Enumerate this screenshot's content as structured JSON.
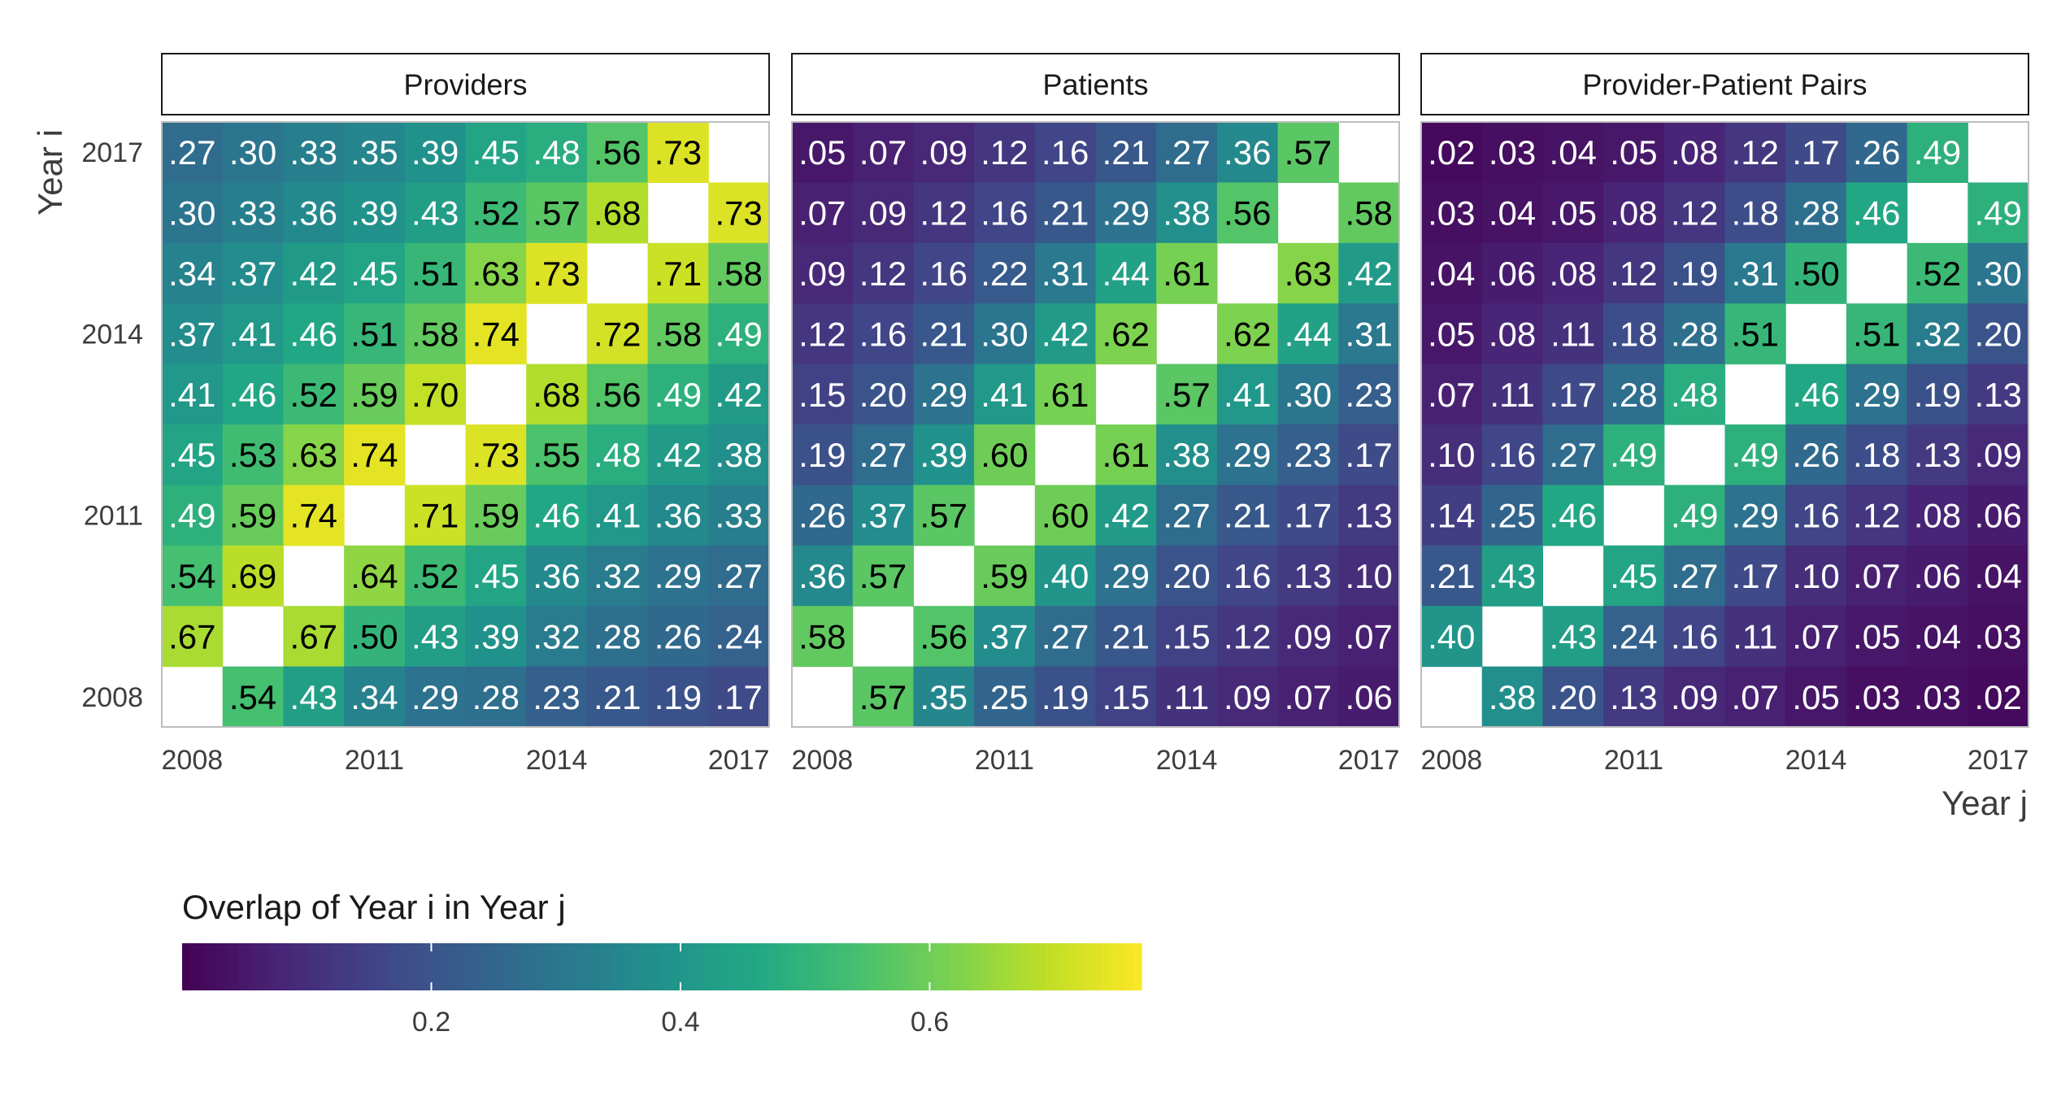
{
  "chart_data": {
    "type": "heatmap",
    "xlabel": "Year j",
    "ylabel": "Year i",
    "years": [
      "2008",
      "2009",
      "2010",
      "2011",
      "2012",
      "2013",
      "2014",
      "2015",
      "2016",
      "2017"
    ],
    "x_tick_labels": [
      "2008",
      "2011",
      "2014",
      "2017"
    ],
    "y_tick_labels": [
      "2008",
      "2011",
      "2014",
      "2017"
    ],
    "color_scale": {
      "name": "viridis",
      "domain": [
        0.0,
        0.77
      ],
      "legend_title": "Overlap of Year i in Year j",
      "legend_ticks": [
        "0.2",
        "0.4",
        "0.6"
      ],
      "legend_tick_values": [
        0.2,
        0.4,
        0.6
      ]
    },
    "panels": [
      {
        "title": "Providers",
        "rows_top_to_bottom": [
          [
            ".27",
            ".30",
            ".33",
            ".35",
            ".39",
            ".45",
            ".48",
            ".56",
            ".73",
            ""
          ],
          [
            ".30",
            ".33",
            ".36",
            ".39",
            ".43",
            ".52",
            ".57",
            ".68",
            "",
            ".73"
          ],
          [
            ".34",
            ".37",
            ".42",
            ".45",
            ".51",
            ".63",
            ".73",
            "",
            ".71",
            ".58"
          ],
          [
            ".37",
            ".41",
            ".46",
            ".51",
            ".58",
            ".74",
            "",
            ".72",
            ".58",
            ".49"
          ],
          [
            ".41",
            ".46",
            ".52",
            ".59",
            ".70",
            "",
            ".68",
            ".56",
            ".49",
            ".42"
          ],
          [
            ".45",
            ".53",
            ".63",
            ".74",
            "",
            ".73",
            ".55",
            ".48",
            ".42",
            ".38"
          ],
          [
            ".49",
            ".59",
            ".74",
            "",
            ".71",
            ".59",
            ".46",
            ".41",
            ".36",
            ".33"
          ],
          [
            ".54",
            ".69",
            "",
            ".64",
            ".52",
            ".45",
            ".36",
            ".32",
            ".29",
            ".27"
          ],
          [
            ".67",
            "",
            ".67",
            ".50",
            ".43",
            ".39",
            ".32",
            ".28",
            ".26",
            ".24"
          ],
          [
            "",
            ".54",
            ".43",
            ".34",
            ".29",
            ".28",
            ".23",
            ".21",
            ".19",
            ".17"
          ]
        ]
      },
      {
        "title": "Patients",
        "rows_top_to_bottom": [
          [
            ".05",
            ".07",
            ".09",
            ".12",
            ".16",
            ".21",
            ".27",
            ".36",
            ".57",
            ""
          ],
          [
            ".07",
            ".09",
            ".12",
            ".16",
            ".21",
            ".29",
            ".38",
            ".56",
            "",
            ".58"
          ],
          [
            ".09",
            ".12",
            ".16",
            ".22",
            ".31",
            ".44",
            ".61",
            "",
            ".63",
            ".42"
          ],
          [
            ".12",
            ".16",
            ".21",
            ".30",
            ".42",
            ".62",
            "",
            ".62",
            ".44",
            ".31"
          ],
          [
            ".15",
            ".20",
            ".29",
            ".41",
            ".61",
            "",
            ".57",
            ".41",
            ".30",
            ".23"
          ],
          [
            ".19",
            ".27",
            ".39",
            ".60",
            "",
            ".61",
            ".38",
            ".29",
            ".23",
            ".17"
          ],
          [
            ".26",
            ".37",
            ".57",
            "",
            ".60",
            ".42",
            ".27",
            ".21",
            ".17",
            ".13"
          ],
          [
            ".36",
            ".57",
            "",
            ".59",
            ".40",
            ".29",
            ".20",
            ".16",
            ".13",
            ".10"
          ],
          [
            ".58",
            "",
            ".56",
            ".37",
            ".27",
            ".21",
            ".15",
            ".12",
            ".09",
            ".07"
          ],
          [
            "",
            ".57",
            ".35",
            ".25",
            ".19",
            ".15",
            ".11",
            ".09",
            ".07",
            ".06"
          ]
        ]
      },
      {
        "title": "Provider-Patient Pairs",
        "rows_top_to_bottom": [
          [
            ".02",
            ".03",
            ".04",
            ".05",
            ".08",
            ".12",
            ".17",
            ".26",
            ".49",
            ""
          ],
          [
            ".03",
            ".04",
            ".05",
            ".08",
            ".12",
            ".18",
            ".28",
            ".46",
            "",
            ".49"
          ],
          [
            ".04",
            ".06",
            ".08",
            ".12",
            ".19",
            ".31",
            ".50",
            "",
            ".52",
            ".30"
          ],
          [
            ".05",
            ".08",
            ".11",
            ".18",
            ".28",
            ".51",
            "",
            ".51",
            ".32",
            ".20"
          ],
          [
            ".07",
            ".11",
            ".17",
            ".28",
            ".48",
            "",
            ".46",
            ".29",
            ".19",
            ".13"
          ],
          [
            ".10",
            ".16",
            ".27",
            ".49",
            "",
            ".49",
            ".26",
            ".18",
            ".13",
            ".09"
          ],
          [
            ".14",
            ".25",
            ".46",
            "",
            ".49",
            ".29",
            ".16",
            ".12",
            ".08",
            ".06"
          ],
          [
            ".21",
            ".43",
            "",
            ".45",
            ".27",
            ".17",
            ".10",
            ".07",
            ".06",
            ".04"
          ],
          [
            ".40",
            "",
            ".43",
            ".24",
            ".16",
            ".11",
            ".07",
            ".05",
            ".04",
            ".03"
          ],
          [
            "",
            ".38",
            ".20",
            ".13",
            ".09",
            ".07",
            ".05",
            ".03",
            ".03",
            ".02"
          ]
        ]
      }
    ]
  }
}
